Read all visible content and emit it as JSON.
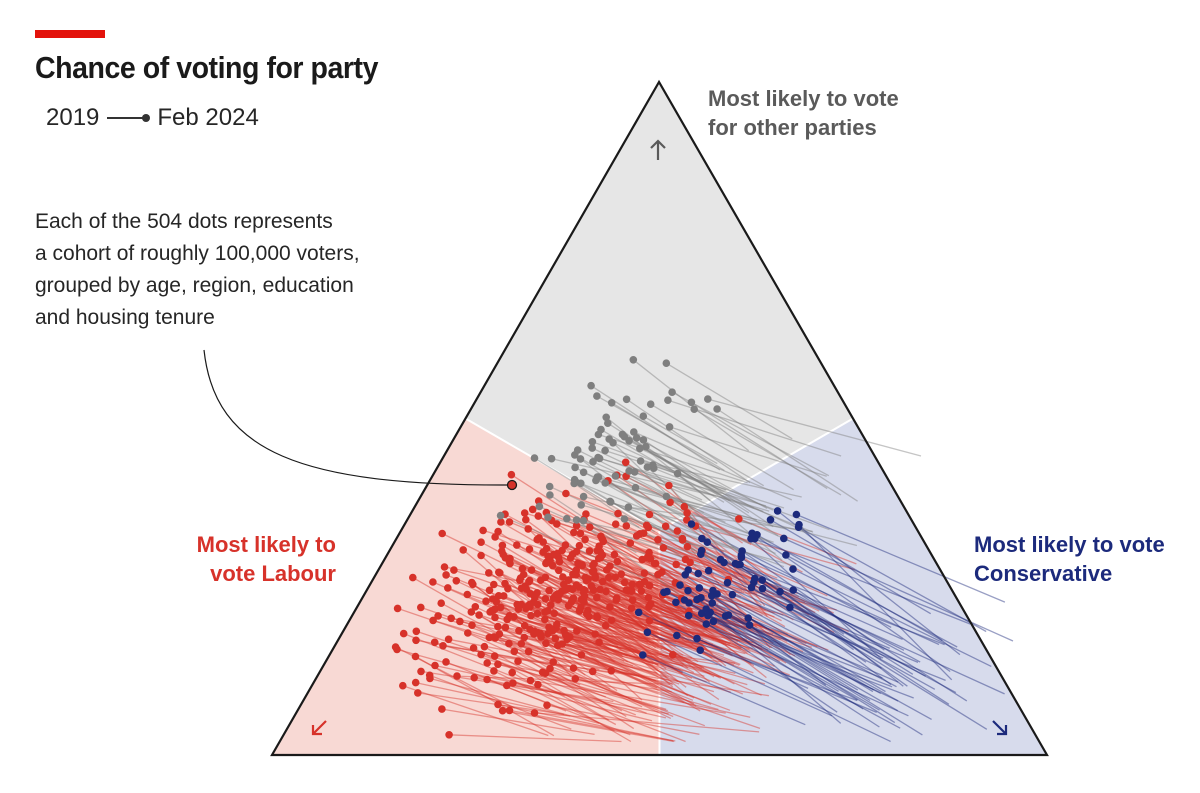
{
  "header": {
    "title": "Chance of voting for party",
    "accent_color": "#e3120b",
    "legend_start": "2019",
    "legend_end": "Feb 2024"
  },
  "annotation": {
    "lines": [
      "Each of the 504 dots represents",
      "a cohort of roughly 100,000 voters,",
      "grouped by age, region, education",
      "and housing tenure"
    ]
  },
  "regions": {
    "other": {
      "lines": [
        "Most likely to vote",
        "for other parties"
      ],
      "color": "#5a5a5a",
      "fill": "#e6e6e6",
      "icon": "arrow-up-icon"
    },
    "labour": {
      "lines": [
        "Most likely to",
        "vote Labour"
      ],
      "color": "#d7322a",
      "fill": "#f8d9d4",
      "icon": "arrow-down-left-icon"
    },
    "conservative": {
      "lines": [
        "Most likely to vote",
        "Conservative"
      ],
      "color": "#1c2a7c",
      "fill": "#d7dbec",
      "icon": "arrow-down-right-icon"
    }
  },
  "chart_data": {
    "type": "scatter",
    "subtype": "ternary",
    "title": "Chance of voting for party",
    "axes": [
      "Labour",
      "Conservative",
      "Other parties"
    ],
    "start_label": "2019",
    "end_label": "Feb 2024",
    "total_cohorts": 504,
    "cohort_size": "roughly 100,000 voters",
    "groups": [
      {
        "name": "Most likely to vote Labour (Feb 2024)",
        "color": "#d7322a",
        "approx_count": 360,
        "centroid_2024": {
          "labour": 0.52,
          "conservative": 0.24,
          "other": 0.24
        },
        "centroid_2019": {
          "labour": 0.38,
          "conservative": 0.47,
          "other": 0.15
        }
      },
      {
        "name": "Most likely to vote Conservative (Feb 2024)",
        "color": "#1c2a7c",
        "approx_count": 70,
        "centroid_2024": {
          "labour": 0.28,
          "conservative": 0.45,
          "other": 0.27
        },
        "centroid_2019": {
          "labour": 0.12,
          "conservative": 0.76,
          "other": 0.12
        }
      },
      {
        "name": "Most likely to vote for other parties (Feb 2024)",
        "color": "#7f7f7f",
        "approx_count": 74,
        "centroid_2024": {
          "labour": 0.33,
          "conservative": 0.22,
          "other": 0.45
        },
        "centroid_2019": {
          "labour": 0.2,
          "conservative": 0.45,
          "other": 0.35
        }
      }
    ]
  }
}
